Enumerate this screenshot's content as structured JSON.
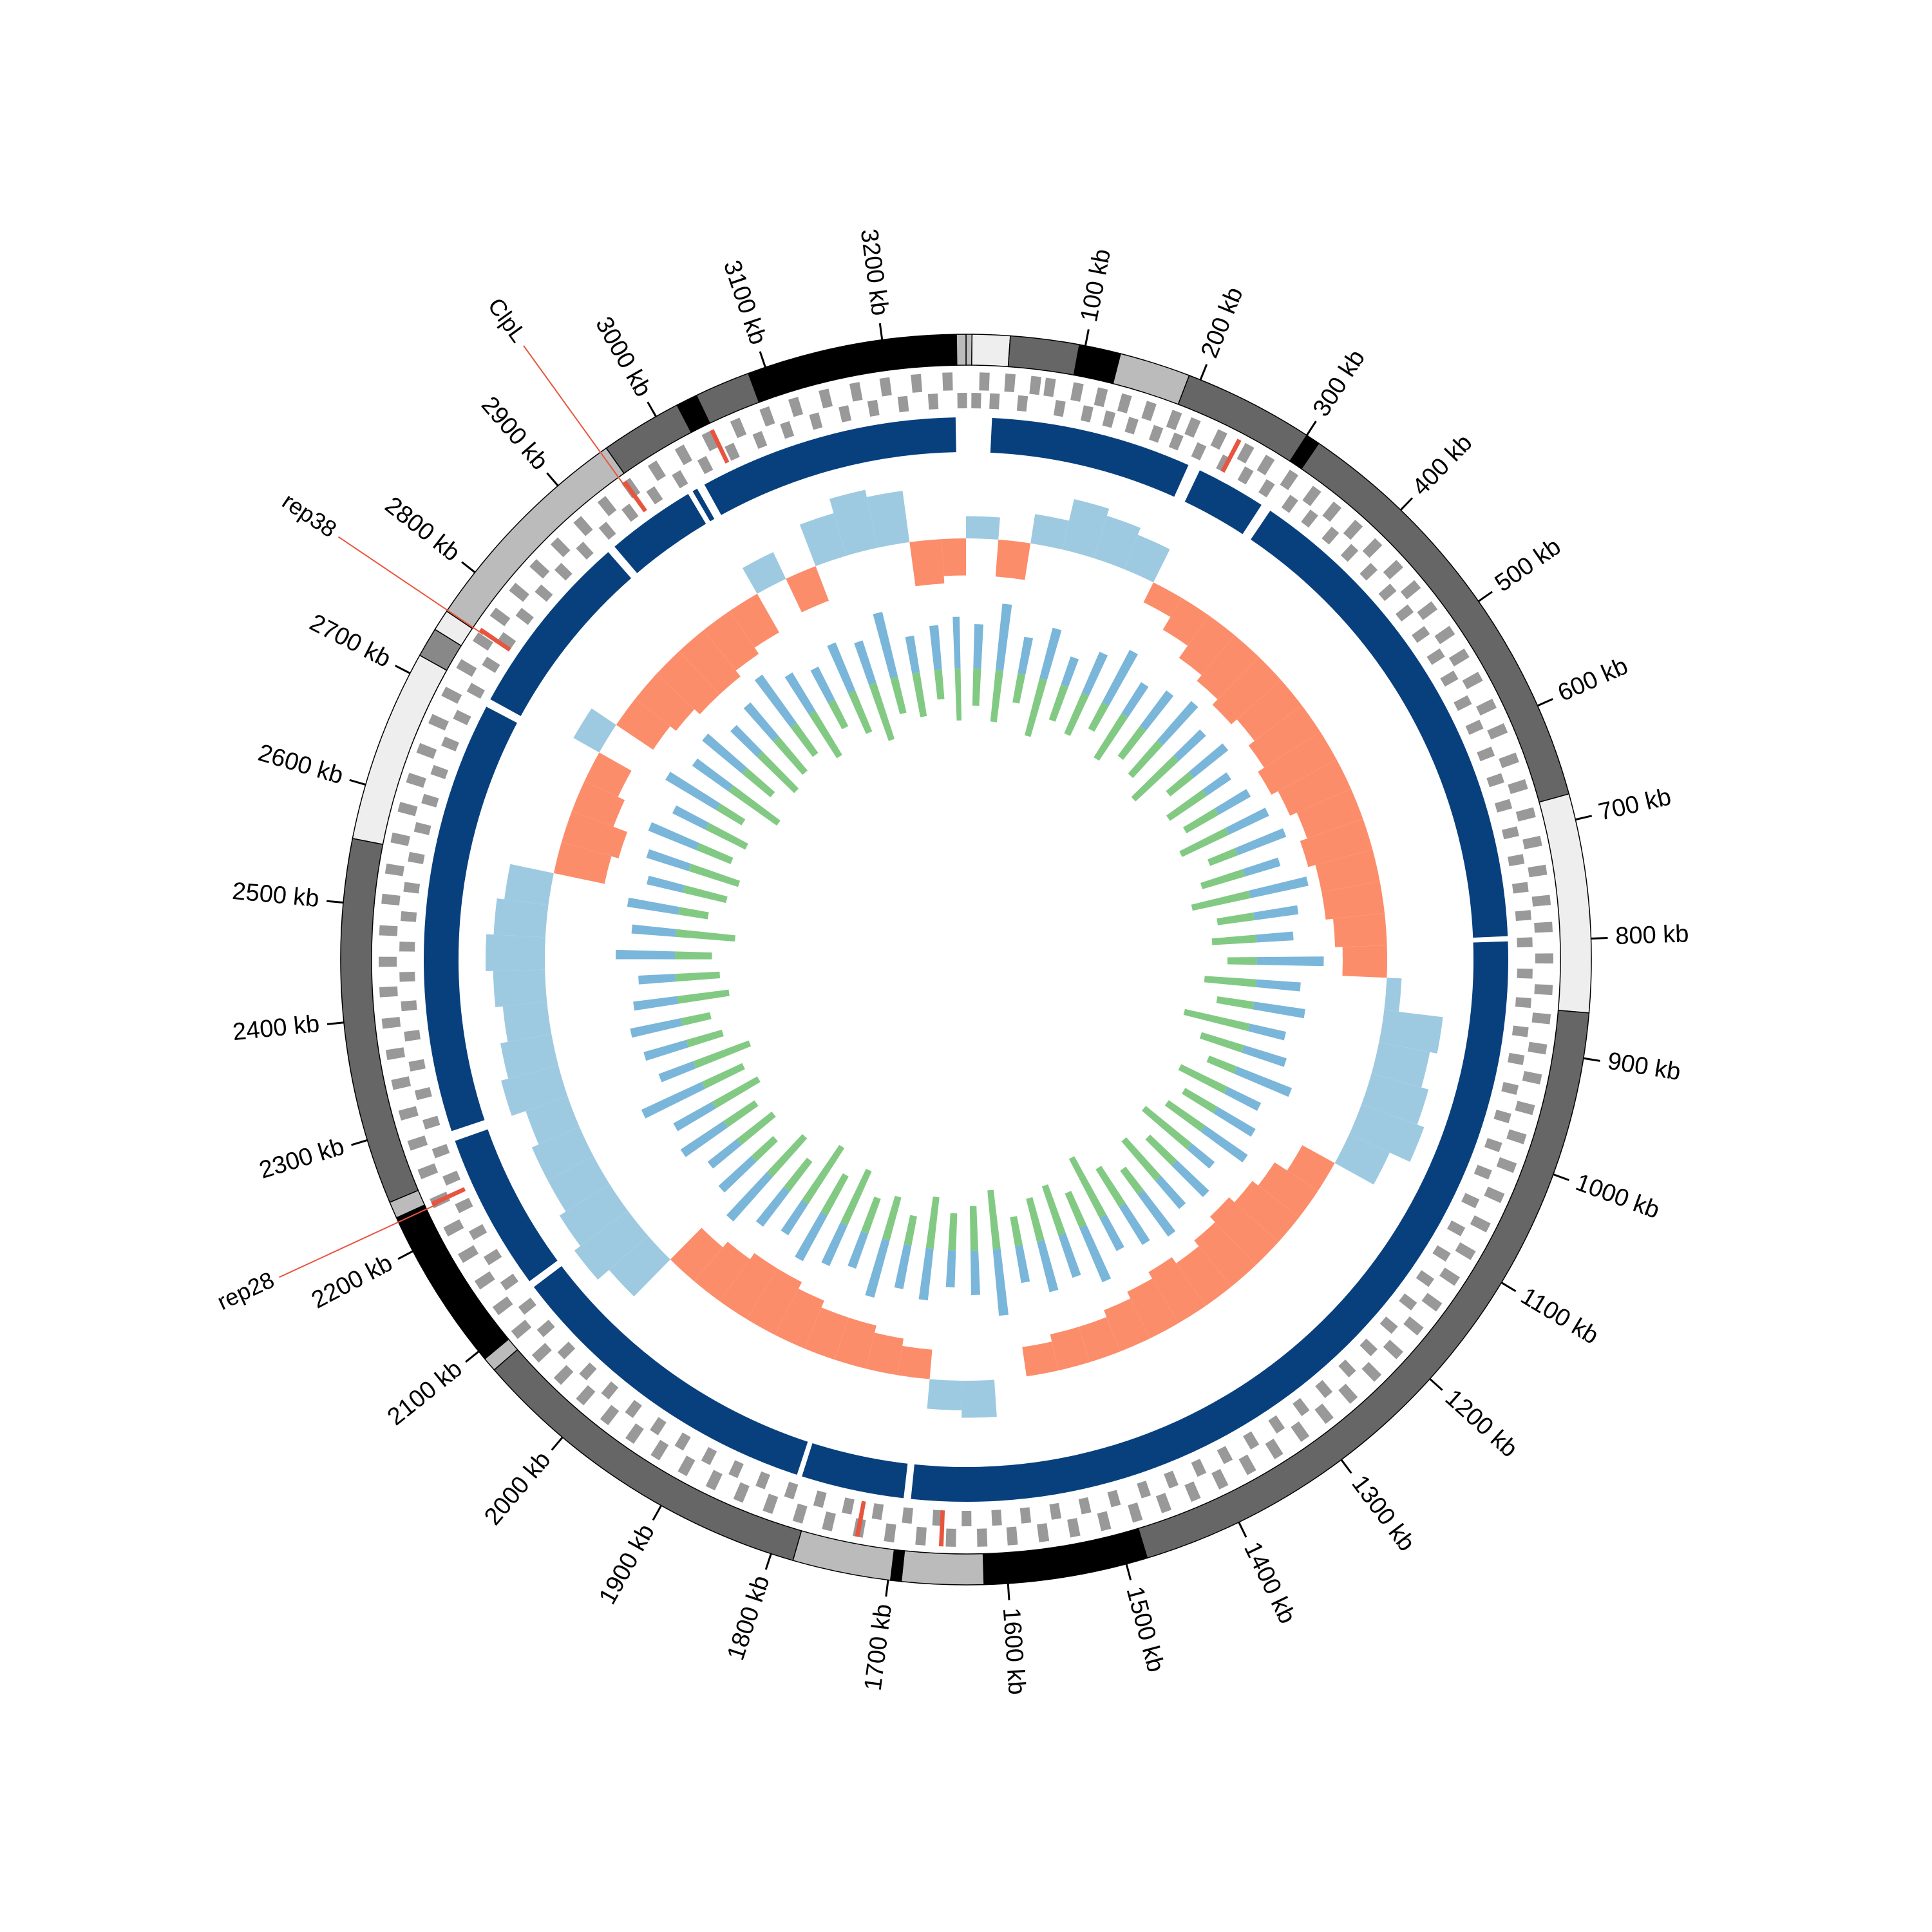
{
  "chart_data": {
    "type": "circos",
    "xlim": [
      0,
      3270
    ],
    "xticks": [
      {
        "value": 100,
        "label": "100 kb"
      },
      {
        "value": 200,
        "label": "200 kb"
      },
      {
        "value": 300,
        "label": "300 kb"
      },
      {
        "value": 400,
        "label": "400 kb"
      },
      {
        "value": 500,
        "label": "500 kb"
      },
      {
        "value": 600,
        "label": "600 kb"
      },
      {
        "value": 700,
        "label": "700 kb"
      },
      {
        "value": 800,
        "label": "800 kb"
      },
      {
        "value": 900,
        "label": "900 kb"
      },
      {
        "value": 1000,
        "label": "1000 kb"
      },
      {
        "value": 1100,
        "label": "1100 kb"
      },
      {
        "value": 1200,
        "label": "1200 kb"
      },
      {
        "value": 1300,
        "label": "1300 kb"
      },
      {
        "value": 1400,
        "label": "1400 kb"
      },
      {
        "value": 1500,
        "label": "1500 kb"
      },
      {
        "value": 1600,
        "label": "1600 kb"
      },
      {
        "value": 1700,
        "label": "1700 kb"
      },
      {
        "value": 1800,
        "label": "1800 kb"
      },
      {
        "value": 1900,
        "label": "1900 kb"
      },
      {
        "value": 2000,
        "label": "2000 kb"
      },
      {
        "value": 2100,
        "label": "2100 kb"
      },
      {
        "value": 2200,
        "label": "2200 kb"
      },
      {
        "value": 2300,
        "label": "2300 kb"
      },
      {
        "value": 2400,
        "label": "2400 kb"
      },
      {
        "value": 2500,
        "label": "2500 kb"
      },
      {
        "value": 2600,
        "label": "2600 kb"
      },
      {
        "value": 2700,
        "label": "2700 kb"
      },
      {
        "value": 2800,
        "label": "2800 kb"
      },
      {
        "value": 2900,
        "label": "2900 kb"
      },
      {
        "value": 3000,
        "label": "3000 kb"
      },
      {
        "value": 3100,
        "label": "3100 kb"
      },
      {
        "value": 3200,
        "label": "3200 kb"
      }
    ],
    "ideogram": {
      "bands": [
        {
          "start": 0,
          "end": 5,
          "color": "#bbbbbb"
        },
        {
          "start": 5,
          "end": 37,
          "color": "#eeeeee"
        },
        {
          "start": 37,
          "end": 95,
          "color": "#666666"
        },
        {
          "start": 95,
          "end": 130,
          "color": "#000000"
        },
        {
          "start": 130,
          "end": 190,
          "color": "#bbbbbb"
        },
        {
          "start": 190,
          "end": 300,
          "color": "#666666"
        },
        {
          "start": 300,
          "end": 312,
          "color": "#000000"
        },
        {
          "start": 312,
          "end": 678,
          "color": "#666666"
        },
        {
          "start": 678,
          "end": 862,
          "color": "#eeeeee"
        },
        {
          "start": 862,
          "end": 1482,
          "color": "#666666"
        },
        {
          "start": 1482,
          "end": 1620,
          "color": "#000000"
        },
        {
          "start": 1620,
          "end": 1689,
          "color": "#bbbbbb"
        },
        {
          "start": 1689,
          "end": 1698,
          "color": "#000000"
        },
        {
          "start": 1698,
          "end": 1781,
          "color": "#bbbbbb"
        },
        {
          "start": 1781,
          "end": 2080,
          "color": "#666666"
        },
        {
          "start": 2080,
          "end": 2092,
          "color": "#bbbbbb"
        },
        {
          "start": 2092,
          "end": 2231,
          "color": "#000000"
        },
        {
          "start": 2231,
          "end": 2245,
          "color": "#bbbbbb"
        },
        {
          "start": 2245,
          "end": 2554,
          "color": "#666666"
        },
        {
          "start": 2554,
          "end": 2717,
          "color": "#eeeeee"
        },
        {
          "start": 2717,
          "end": 2742,
          "color": "#888888"
        },
        {
          "start": 2742,
          "end": 2760,
          "color": "#eeeeee"
        },
        {
          "start": 2760,
          "end": 2951,
          "color": "#bbbbbb"
        },
        {
          "start": 2951,
          "end": 3020,
          "color": "#666666"
        },
        {
          "start": 3020,
          "end": 3038,
          "color": "#000000"
        },
        {
          "start": 3038,
          "end": 3085,
          "color": "#666666"
        },
        {
          "start": 3085,
          "end": 3262,
          "color": "#000000"
        },
        {
          "start": 3262,
          "end": 3270,
          "color": "#bbbbbb"
        }
      ]
    },
    "genes": {
      "color": "#999999",
      "highlight_color": "#e8553f",
      "forward": [
        12,
        35,
        58,
        71,
        96,
        118,
        140,
        163,
        187,
        205,
        231,
        258,
        279,
        304,
        329,
        352,
        377,
        401,
        428,
        452,
        476,
        503,
        527,
        551,
        578,
        602,
        630,
        655,
        681,
        707,
        733,
        760,
        784,
        812,
        840,
        866,
        893,
        920,
        948,
        975,
        1002,
        1031,
        1060,
        1088,
        1115,
        1143,
        1170,
        1198,
        1226,
        1255,
        1283,
        1310,
        1338,
        1366,
        1394,
        1421,
        1449,
        1476,
        1505,
        1533,
        1561,
        1589,
        1616,
        1644,
        1671,
        1699,
        1727,
        1755,
        1782,
        1810,
        1838,
        1865,
        1893,
        1921,
        1948,
        1976,
        2004,
        2031,
        2059,
        2087,
        2114,
        2142,
        2170,
        2197,
        2225,
        2253,
        2280,
        2308,
        2336,
        2363,
        2391,
        2419,
        2446,
        2474,
        2502,
        2529,
        2557,
        2585,
        2612,
        2640,
        2668,
        2695,
        2723,
        2751,
        2778,
        2806,
        2834,
        2861,
        2889,
        2917,
        2944,
        2972,
        3000,
        3027,
        3055,
        3083,
        3110,
        3138,
        3166,
        3193,
        3221,
        3249
      ],
      "reverse": [
        5,
        22,
        48,
        83,
        109,
        130,
        152,
        176,
        196,
        219,
        245,
        268,
        291,
        317,
        340,
        365,
        389,
        414,
        440,
        465,
        490,
        515,
        539,
        565,
        590,
        617,
        643,
        668,
        694,
        720,
        746,
        772,
        797,
        826,
        853,
        880,
        906,
        934,
        961,
        989,
        1016,
        1045,
        1074,
        1101,
        1129,
        1156,
        1184,
        1212,
        1240,
        1269,
        1296,
        1324,
        1352,
        1380,
        1407,
        1435,
        1462,
        1491,
        1519,
        1547,
        1575,
        1602,
        1630,
        1657,
        1685,
        1713,
        1741,
        1768,
        1796,
        1824,
        1851,
        1879,
        1907,
        1934,
        1962,
        1990,
        2017,
        2045,
        2073,
        2100,
        2128,
        2156,
        2183,
        2211,
        2239,
        2266,
        2294,
        2322,
        2349,
        2377,
        2405,
        2432,
        2460,
        2488,
        2515,
        2543,
        2571,
        2598,
        2626,
        2654,
        2681,
        2709,
        2737,
        2764,
        2792,
        2820,
        2847,
        2875,
        2903,
        2930,
        2958,
        2986,
        3013,
        3041,
        3069,
        3096,
        3124,
        3152,
        3179,
        3207,
        3235,
        3262
      ],
      "highlighted": [
        250,
        1655,
        1730,
        2227,
        2761,
        2945,
        3035
      ]
    },
    "contigs": {
      "color": "#08407e",
      "segments": [
        [
          25,
          220
        ],
        [
          232,
          300
        ],
        [
          310,
          795
        ],
        [
          800,
          1688
        ],
        [
          1695,
          1795
        ],
        [
          1800,
          2115
        ],
        [
          2122,
          2275
        ],
        [
          2285,
          2705
        ],
        [
          2713,
          2895
        ],
        [
          2903,
          2990
        ],
        [
          2995,
          3000
        ],
        [
          3008,
          3260
        ]
      ]
    },
    "x": [
      0,
      40,
      80,
      120,
      160,
      200,
      240,
      280,
      320,
      360,
      400,
      440,
      480,
      520,
      560,
      600,
      640,
      680,
      720,
      760,
      800,
      840,
      880,
      920,
      960,
      1000,
      1040,
      1080,
      1120,
      1160,
      1200,
      1240,
      1280,
      1320,
      1360,
      1400,
      1440,
      1480,
      1520,
      1560,
      1600,
      1640,
      1680,
      1720,
      1760,
      1800,
      1840,
      1880,
      1920,
      1960,
      2000,
      2040,
      2080,
      2120,
      2160,
      2200,
      2240,
      2280,
      2320,
      2360,
      2400,
      2440,
      2480,
      2520,
      2560,
      2600,
      2640,
      2680,
      2720,
      2760,
      2800,
      2840,
      2880,
      2920,
      2960,
      3000,
      3040,
      3080,
      3120,
      3160,
      3200,
      3240
    ],
    "skew": {
      "ylim": [
        -1,
        1
      ],
      "positive_color": "#9ecae1",
      "negative_color": "#fc8d6a",
      "values": [
        0.3,
        -0.5,
        0.4,
        0.7,
        0.6,
        0.5,
        -0.3,
        -0.5,
        -0.7,
        -0.8,
        -0.9,
        -0.8,
        -0.9,
        -1.0,
        -0.9,
        -0.8,
        -0.9,
        -0.8,
        -0.8,
        -0.7,
        -0.6,
        0.2,
        0.8,
        0.7,
        0.8,
        0.9,
        0.6,
        -0.5,
        -0.7,
        -0.8,
        -0.9,
        -0.8,
        -0.7,
        -0.8,
        -0.7,
        -0.6,
        -0.5,
        -0.5,
        -0.4,
        null,
        0.5,
        0.4,
        -0.4,
        -0.5,
        -0.6,
        -0.6,
        -0.7,
        -0.8,
        -0.8,
        -0.7,
        -0.6,
        0.7,
        0.9,
        0.8,
        0.7,
        0.7,
        0.6,
        0.8,
        0.7,
        0.6,
        0.7,
        0.8,
        0.7,
        0.6,
        -0.7,
        -0.8,
        -0.6,
        -0.5,
        0.4,
        -0.6,
        -0.7,
        -0.8,
        -0.8,
        -0.7,
        -0.6,
        0.4,
        -0.5,
        0.6,
        0.8,
        0.7,
        -0.6,
        -0.5
      ]
    },
    "gc": {
      "ylim": [
        0,
        1
      ],
      "series": [
        {
          "color": "#6baed6",
          "values": [
            0.6,
            0.9,
            0.5,
            0.7,
            0.4,
            0.6,
            0.8,
            0.5,
            0.6,
            0.7,
            0.5,
            0.6,
            0.4,
            0.5,
            0.6,
            0.7,
            0.5,
            0.8,
            0.6,
            0.5,
            0.9,
            0.6,
            0.7,
            0.5,
            0.6,
            0.8,
            0.5,
            0.6,
            0.7,
            0.4,
            0.6,
            0.5,
            0.7,
            0.6,
            0.5,
            0.8,
            0.6,
            0.7,
            0.5,
            0.9,
            0.6,
            0.5,
            0.7,
            0.6,
            0.8,
            0.5,
            0.6,
            0.7,
            0.5,
            0.6,
            0.8,
            0.6,
            0.5,
            0.7,
            0.6,
            0.9,
            0.5,
            0.6,
            0.7,
            0.6,
            0.5,
            0.8,
            0.6,
            0.7,
            0.5,
            0.6,
            0.7,
            0.5,
            0.8,
            0.6,
            0.7,
            0.5,
            0.6,
            0.8,
            0.6,
            0.5,
            0.7,
            0.6,
            0.9,
            0.5,
            0.6,
            0.7
          ]
        },
        {
          "color": "#74c476",
          "values": [
            0.5,
            0.7,
            0.4,
            0.8,
            0.5,
            0.6,
            0.4,
            0.7,
            0.5,
            0.6,
            0.8,
            0.4,
            0.6,
            0.5,
            0.7,
            0.4,
            0.6,
            0.8,
            0.5,
            0.6,
            0.4,
            0.7,
            0.5,
            0.9,
            0.6,
            0.4,
            0.7,
            0.5,
            0.6,
            0.8,
            0.5,
            0.7,
            0.4,
            0.6,
            0.9,
            0.5,
            0.7,
            0.6,
            0.4,
            0.8,
            0.6,
            0.5,
            0.7,
            0.4,
            0.6,
            0.5,
            0.8,
            0.6,
            0.9,
            0.5,
            0.7,
            0.4,
            0.6,
            0.5,
            0.7,
            0.6,
            0.8,
            0.5,
            0.4,
            0.7,
            0.6,
            0.5,
            0.8,
            0.4,
            0.6,
            0.7,
            0.5,
            0.6,
            0.4,
            0.8,
            0.5,
            0.7,
            0.6,
            0.5,
            0.7,
            0.4,
            0.6,
            0.8,
            0.5,
            0.6,
            0.4,
            0.7
          ]
        }
      ]
    },
    "annotation_color": "#2c6fb0",
    "annotation_line_color": "#e8553f",
    "annotations": [
      {
        "label": "ClpL",
        "position": 2945
      },
      {
        "label": "rep38",
        "position": 2761
      },
      {
        "label": "rep28",
        "position": 2227
      }
    ]
  }
}
